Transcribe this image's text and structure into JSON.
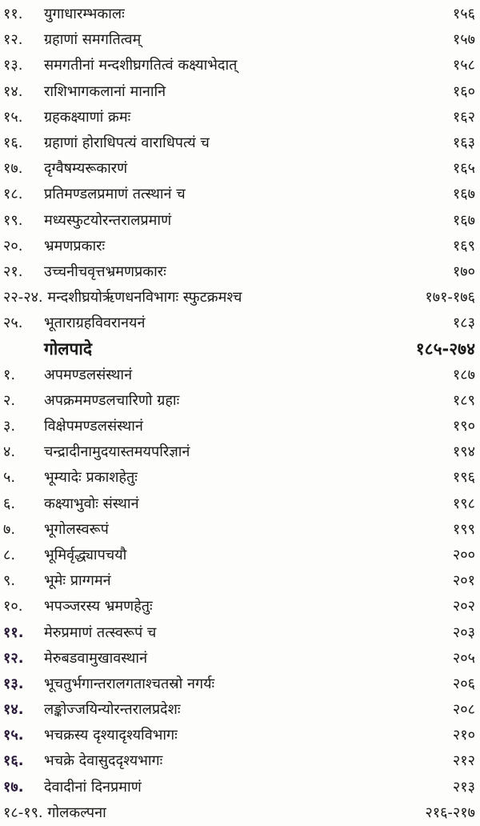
{
  "toc": [
    {
      "num": "११.",
      "title": "युगाधारम्भकालः",
      "page": "१५६"
    },
    {
      "num": "१२.",
      "title": "ग्रहाणां समगतित्वम्",
      "page": "१५७"
    },
    {
      "num": "१३.",
      "title": "समगतीनां मन्दशीघ्रगतित्वं कक्ष्याभेदात्",
      "page": "१५८"
    },
    {
      "num": "१४.",
      "title": "राशिभागकलानां मानानि",
      "page": "१६०"
    },
    {
      "num": "१५.",
      "title": "ग्रहकक्ष्याणां क्रमः",
      "page": "१६२"
    },
    {
      "num": "१६.",
      "title": "ग्रहाणां होराधिपत्यं वाराधिपत्यं च",
      "page": "१६३"
    },
    {
      "num": "१७.",
      "title": "दृग्वैषम्यरूकारणं",
      "page": "१६५"
    },
    {
      "num": "१८.",
      "title": "प्रतिमण्डलप्रमाणं तत्स्थानं च",
      "page": "१६७"
    },
    {
      "num": "१९.",
      "title": "मध्यस्फुटयोरन्तरालप्रमाणं",
      "page": "१६७"
    },
    {
      "num": "२०.",
      "title": "भ्रमणप्रकारः",
      "page": "१६९"
    },
    {
      "num": "२१.",
      "title": "उच्चनीचवृत्तभ्रमणप्रकारः",
      "page": "१७०"
    },
    {
      "num": "",
      "title": "२२-२४. मन्दशीघ्रयोर्ऋणधनविभागः स्फुटक्रमश्च",
      "page": "१७१-१७६",
      "wide": true
    },
    {
      "num": "२५.",
      "title": "भूताराग्रहविवरानयनं",
      "page": "१८३"
    },
    {
      "num": "",
      "title": "गोलपादे",
      "page": "१८५-२७४",
      "header": true
    },
    {
      "num": "१.",
      "title": "अपमण्डलसंस्थानं",
      "page": "१८७"
    },
    {
      "num": "२.",
      "title": "अपक्रममण्डलचारिणो ग्रहाः",
      "page": "१८९"
    },
    {
      "num": "३.",
      "title": "विक्षेपमण्डलसंस्थानं",
      "page": "१९०"
    },
    {
      "num": "४.",
      "title": "चन्द्रादीनामुदयास्तमयपरिज्ञानं",
      "page": "१९४"
    },
    {
      "num": "५.",
      "title": "भूम्यादेः प्रकाशहेतुः",
      "page": "१९६"
    },
    {
      "num": "६.",
      "title": "कक्ष्याभुवोः संस्थानं",
      "page": "१९८"
    },
    {
      "num": "७.",
      "title": "भूगोलस्वरूपं",
      "page": "१९९"
    },
    {
      "num": "८.",
      "title": "भूमिर्वृद्ध्यापचयौ",
      "page": "२००"
    },
    {
      "num": "९.",
      "title": "भूमेः प्राग्गमनं",
      "page": "२०१"
    },
    {
      "num": "१०.",
      "title": "भपञ्जरस्य भ्रमणहेतुः",
      "page": "२०२"
    },
    {
      "num": "११.",
      "title": "मेरुप्रमाणं तत्स्वरूपं च",
      "page": "२०३"
    },
    {
      "num": "१२.",
      "title": "मेरुबडवामुखावस्थानं",
      "page": "२०५"
    },
    {
      "num": "१३.",
      "title": "भूचतुर्भगान्तरालगताश्चतस्रो नगर्यः",
      "page": "२०६"
    },
    {
      "num": "१४.",
      "title": "लङ्कोज्जयिन्योरन्तरालप्रदेशः",
      "page": "२०८"
    },
    {
      "num": "१५.",
      "title": "भचक्रस्य दृश्यादृश्यविभागः",
      "page": "२१०"
    },
    {
      "num": "१६.",
      "title": "भचक्रे देवासुददृश्यभागः",
      "page": "२१२"
    },
    {
      "num": "१७.",
      "title": "देवादीनां दिनप्रमाणं",
      "page": "२१३"
    },
    {
      "num": "",
      "title": "१८-१९. गोलकल्पना",
      "page": "२१६-२१७",
      "wide": true
    }
  ]
}
